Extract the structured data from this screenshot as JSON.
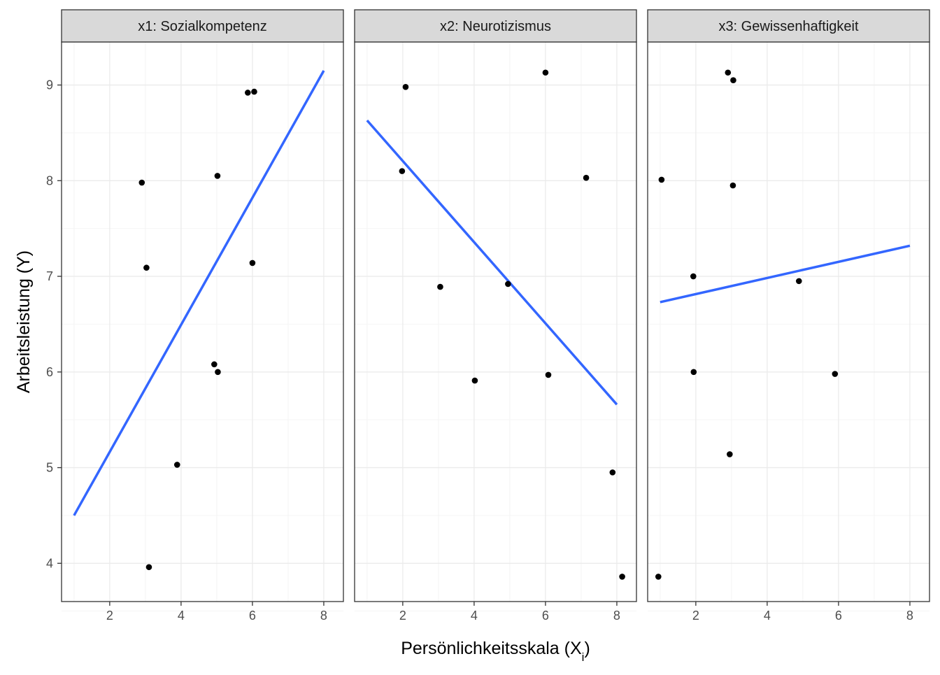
{
  "chart_data": {
    "type": "scatter",
    "xlabel": "Persönlichkeitsskala (X",
    "xlabel_subscript": "i",
    "xlabel_suffix": ")",
    "ylabel": "Arbeitsleistung (Y)",
    "xlim": [
      0.65,
      8.55
    ],
    "ylim": [
      3.6,
      9.45
    ],
    "x_ticks": [
      2,
      4,
      6,
      8
    ],
    "y_ticks": [
      4,
      5,
      6,
      7,
      8,
      9
    ],
    "grid": true,
    "colors": {
      "points": "#000000",
      "fit_line": "#3366FF",
      "grid_major": "#ebebeb",
      "grid_minor": "#f5f5f5",
      "strip_fill": "#d9d9d9",
      "panel_border": "#333333",
      "tick_text": "#4d4d4d"
    },
    "panels": [
      {
        "title": "x1: Sozialkompetenz",
        "points": [
          {
            "x": 2.9,
            "y": 7.98
          },
          {
            "x": 3.03,
            "y": 7.09
          },
          {
            "x": 3.1,
            "y": 3.96
          },
          {
            "x": 3.89,
            "y": 5.03
          },
          {
            "x": 4.93,
            "y": 6.08
          },
          {
            "x": 5.03,
            "y": 6.0
          },
          {
            "x": 5.02,
            "y": 8.05
          },
          {
            "x": 5.87,
            "y": 8.92
          },
          {
            "x": 6.05,
            "y": 8.93
          },
          {
            "x": 6.0,
            "y": 7.14
          }
        ],
        "fit": {
          "x1": 1.0,
          "y1": 4.5,
          "x2": 8.0,
          "y2": 9.15
        }
      },
      {
        "title": "x2: Neurotizismus",
        "points": [
          {
            "x": 2.08,
            "y": 8.98
          },
          {
            "x": 1.98,
            "y": 8.1
          },
          {
            "x": 3.05,
            "y": 6.89
          },
          {
            "x": 4.02,
            "y": 5.91
          },
          {
            "x": 4.95,
            "y": 6.92
          },
          {
            "x": 6.0,
            "y": 9.13
          },
          {
            "x": 6.08,
            "y": 5.97
          },
          {
            "x": 7.14,
            "y": 8.03
          },
          {
            "x": 7.88,
            "y": 4.95
          },
          {
            "x": 8.15,
            "y": 3.86
          }
        ],
        "fit": {
          "x1": 1.0,
          "y1": 8.63,
          "x2": 8.0,
          "y2": 5.66
        }
      },
      {
        "title": "x3: Gewissenhaftigkeit",
        "points": [
          {
            "x": 0.95,
            "y": 3.86
          },
          {
            "x": 1.04,
            "y": 8.01
          },
          {
            "x": 1.93,
            "y": 7.0
          },
          {
            "x": 1.94,
            "y": 6.0
          },
          {
            "x": 2.9,
            "y": 9.13
          },
          {
            "x": 3.05,
            "y": 9.05
          },
          {
            "x": 3.04,
            "y": 7.95
          },
          {
            "x": 2.95,
            "y": 5.14
          },
          {
            "x": 4.89,
            "y": 6.95
          },
          {
            "x": 5.9,
            "y": 5.98
          }
        ],
        "fit": {
          "x1": 1.0,
          "y1": 6.73,
          "x2": 8.0,
          "y2": 7.32
        }
      }
    ]
  }
}
